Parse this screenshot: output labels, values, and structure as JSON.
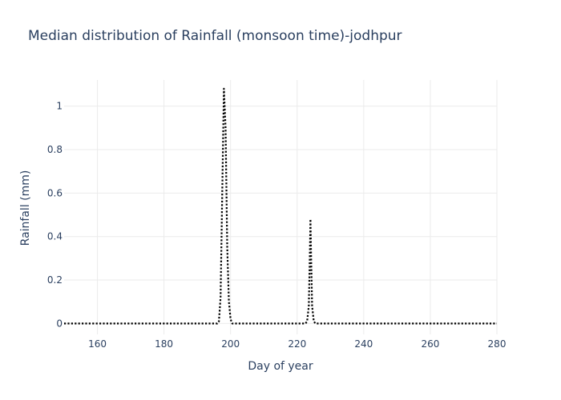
{
  "chart_data": {
    "type": "line",
    "title": "Median distribution of Rainfall (monsoon time)-jodhpur",
    "xlabel": "Day of year",
    "ylabel": "Rainfall (mm)",
    "xlim": [
      150,
      280
    ],
    "ylim": [
      -0.05,
      1.12
    ],
    "x_ticks": [
      160,
      180,
      200,
      220,
      240,
      260,
      280
    ],
    "y_ticks": [
      0,
      0.2,
      0.4,
      0.6,
      0.8,
      1
    ],
    "y_tick_labels": [
      "0",
      "0.2",
      "0.4",
      "0.6",
      "0.8",
      "1"
    ],
    "grid": true,
    "legend": "none",
    "series": [
      {
        "color": "#000000",
        "line_style": "dotted",
        "x": [
          150,
          160,
          170,
          180,
          190,
          196,
          196.5,
          197,
          197.5,
          198,
          198.5,
          199,
          199.5,
          200,
          200.5,
          201,
          210,
          220,
          222.5,
          223,
          223.5,
          223.8,
          224,
          224.2,
          224.5,
          225,
          225.5,
          226,
          235,
          245,
          255,
          265,
          275,
          280
        ],
        "y": [
          0,
          0,
          0,
          0,
          0,
          0,
          0.01,
          0.12,
          0.6,
          1.08,
          0.9,
          0.35,
          0.1,
          0.02,
          0,
          0,
          0,
          0,
          0,
          0.01,
          0.08,
          0.3,
          0.48,
          0.3,
          0.08,
          0.01,
          0,
          0,
          0,
          0,
          0,
          0,
          0,
          0
        ]
      }
    ]
  }
}
